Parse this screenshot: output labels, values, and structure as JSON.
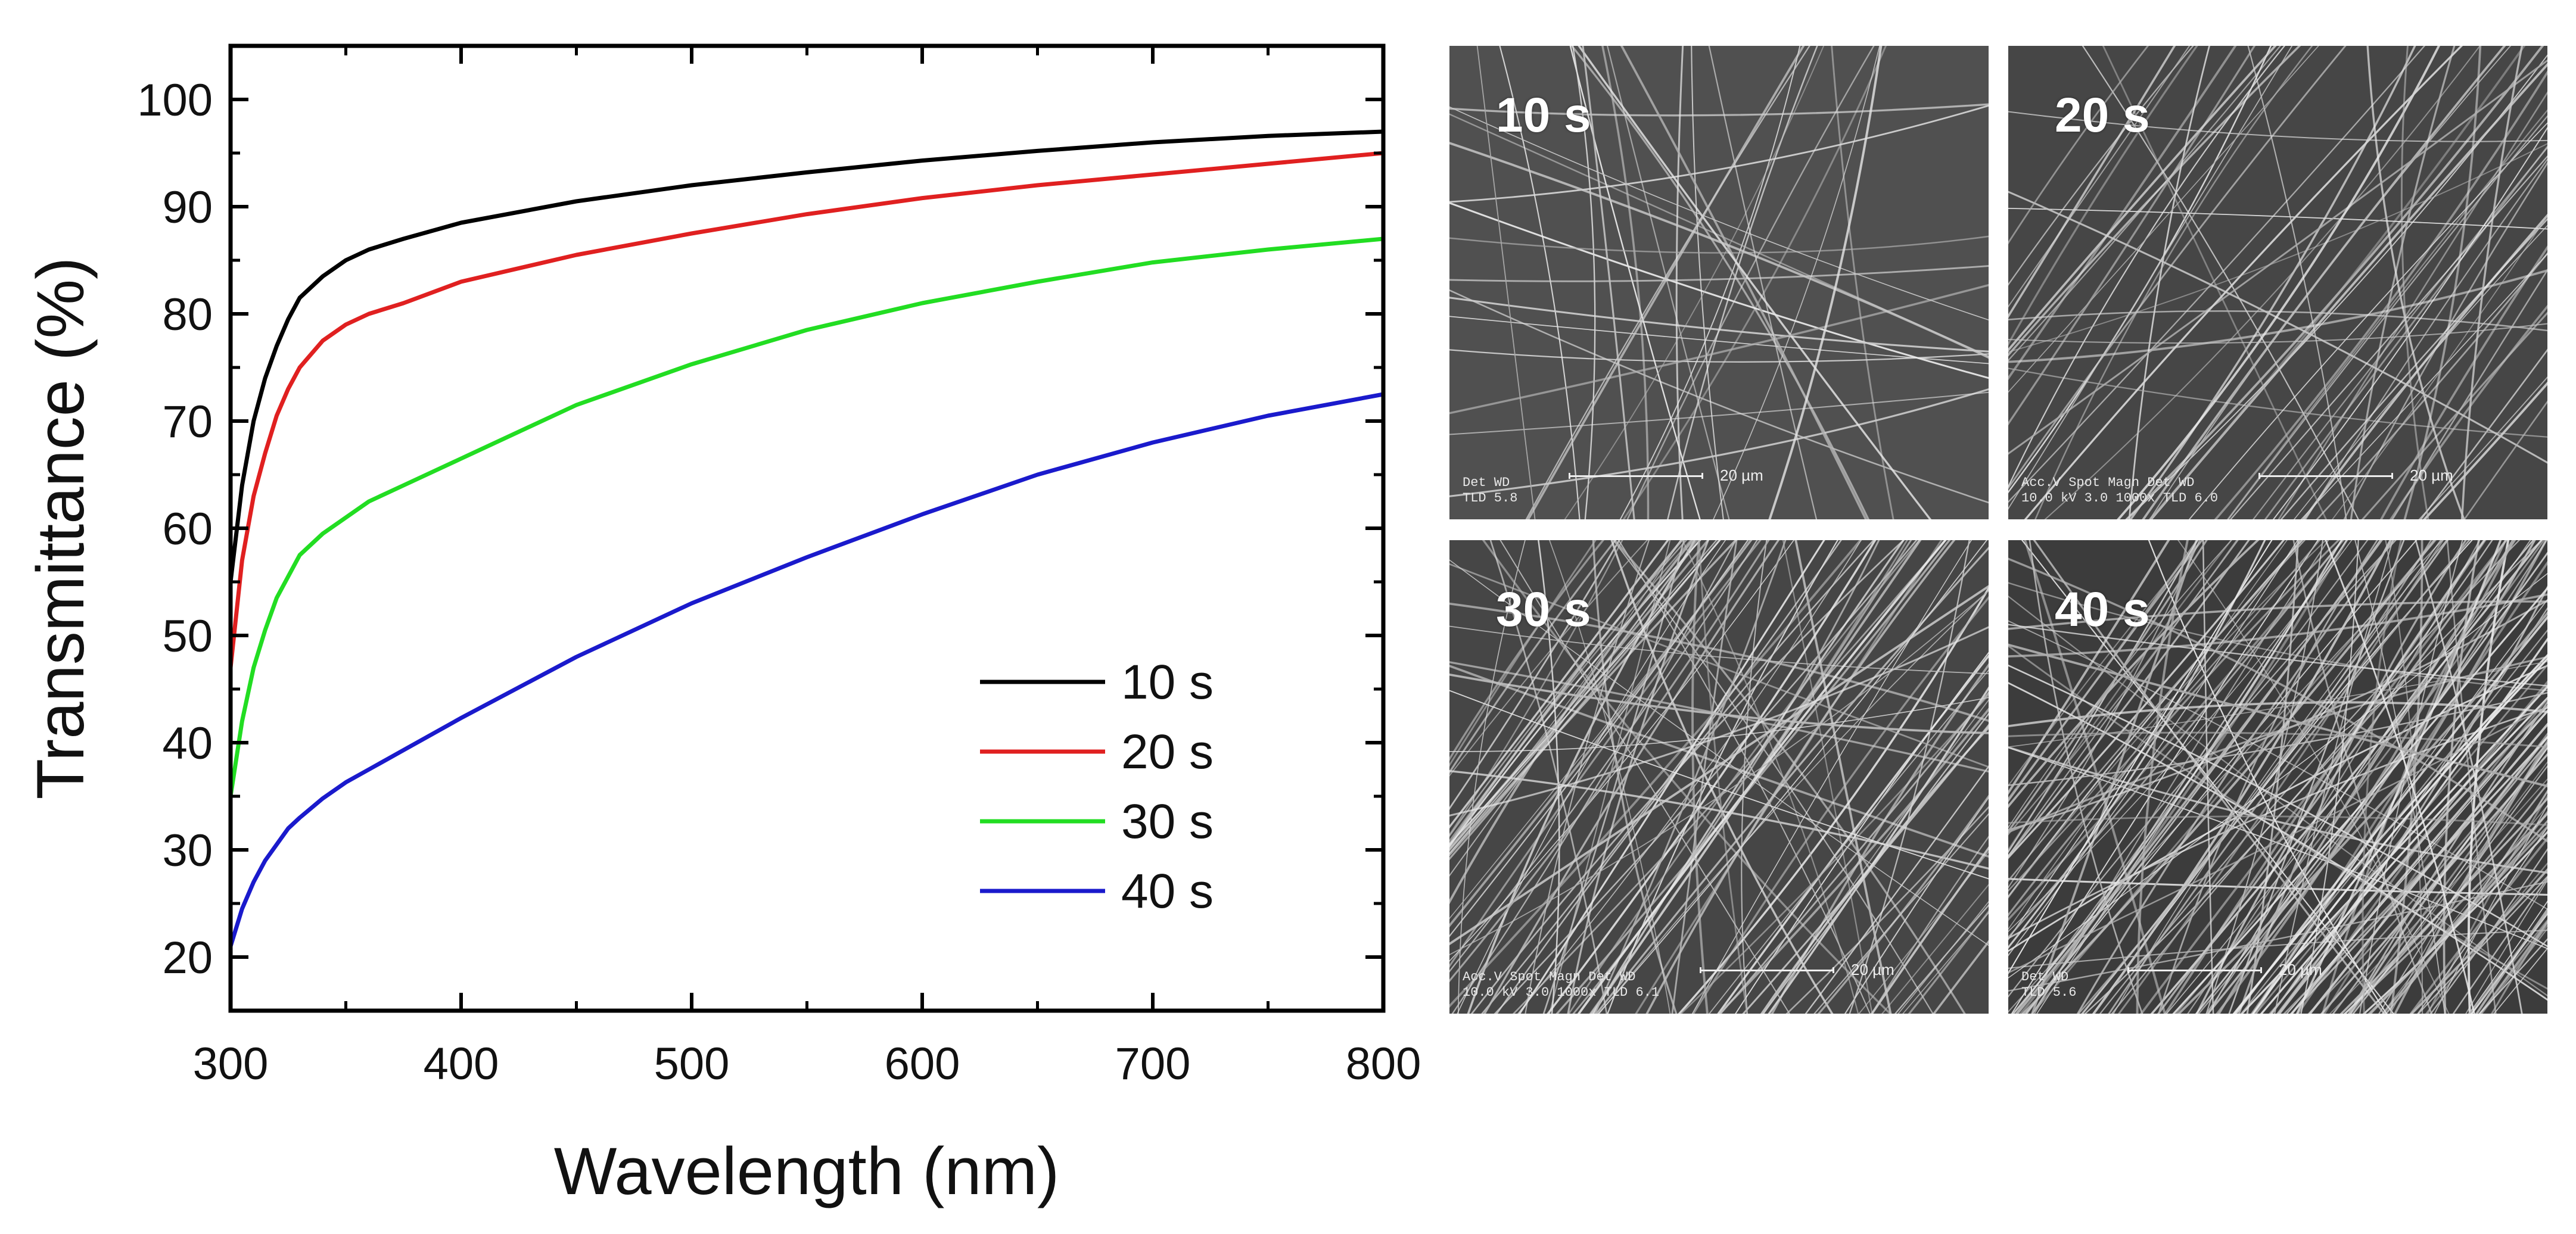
{
  "chart_data": {
    "type": "line",
    "xlabel": "Wavelength (nm)",
    "ylabel": "Transmittance (%)",
    "xlim": [
      300,
      800
    ],
    "ylim": [
      15,
      105
    ],
    "xticks": [
      300,
      400,
      500,
      600,
      700,
      800
    ],
    "yticks": [
      20,
      30,
      40,
      50,
      60,
      70,
      80,
      90,
      100
    ],
    "legend_position": "bottom-right",
    "series": [
      {
        "name": "10 s",
        "color": "#000000",
        "x": [
          300,
          305,
          310,
          315,
          320,
          325,
          330,
          340,
          350,
          360,
          375,
          400,
          450,
          500,
          550,
          600,
          650,
          700,
          750,
          800
        ],
        "values": [
          55,
          64,
          70,
          74,
          77,
          79.5,
          81.5,
          83.5,
          85,
          86,
          87,
          88.5,
          90.5,
          92,
          93.2,
          94.3,
          95.2,
          96,
          96.6,
          97
        ]
      },
      {
        "name": "20 s",
        "color": "#e02020",
        "x": [
          300,
          305,
          310,
          315,
          320,
          325,
          330,
          340,
          350,
          360,
          375,
          400,
          450,
          500,
          550,
          600,
          650,
          700,
          750,
          800
        ],
        "values": [
          47,
          57,
          63,
          67,
          70.5,
          73,
          75,
          77.5,
          79,
          80,
          81,
          83,
          85.5,
          87.5,
          89.3,
          90.8,
          92,
          93,
          94,
          95
        ]
      },
      {
        "name": "30 s",
        "color": "#22dd22",
        "x": [
          300,
          305,
          310,
          315,
          320,
          325,
          330,
          340,
          350,
          360,
          375,
          400,
          450,
          500,
          550,
          600,
          650,
          700,
          750,
          800
        ],
        "values": [
          35,
          42,
          47,
          50.5,
          53.5,
          55.5,
          57.5,
          59.5,
          61,
          62.5,
          64,
          66.5,
          71.5,
          75.3,
          78.5,
          81,
          83,
          84.8,
          86,
          87
        ]
      },
      {
        "name": "40 s",
        "color": "#1a1acc",
        "x": [
          300,
          305,
          310,
          315,
          320,
          325,
          330,
          340,
          350,
          360,
          375,
          400,
          450,
          500,
          550,
          600,
          650,
          700,
          750,
          800
        ],
        "values": [
          21,
          24.5,
          27,
          29,
          30.5,
          32,
          33,
          34.8,
          36.3,
          37.5,
          39.3,
          42.3,
          48,
          53,
          57.3,
          61.3,
          65,
          68,
          70.5,
          72.5
        ]
      }
    ]
  },
  "sem_panels": [
    {
      "label": "10 s",
      "info": [
        "Det  WD",
        "TLD  5.8"
      ],
      "scale": "20 µm"
    },
    {
      "label": "20 s",
      "info": [
        "Acc.V   Spot Magn    Det  WD",
        "10.0 kV 3.0   1000x   TLD  6.0"
      ],
      "scale": "20 µm"
    },
    {
      "label": "30 s",
      "info": [
        "Acc.V   Spot Magn    Det  WD",
        "10.0 kV 3.0   1000x   TLD  6.1"
      ],
      "scale": "20 µm"
    },
    {
      "label": "40 s",
      "info": [
        "Det  WD",
        "TLD  5.6"
      ],
      "scale": "20 µm"
    }
  ]
}
